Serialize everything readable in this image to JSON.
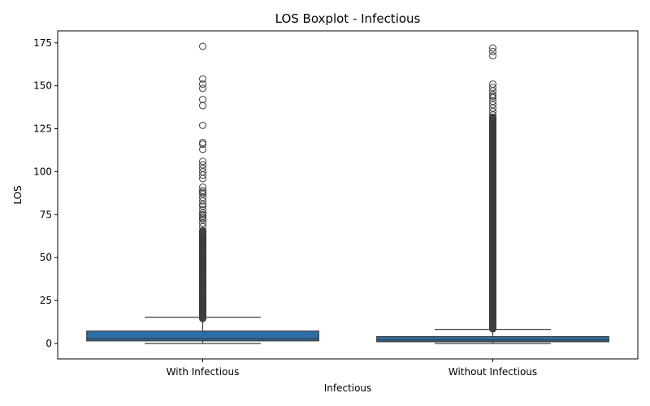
{
  "chart_data": {
    "type": "boxplot",
    "title": "LOS Boxplot - Infectious",
    "xlabel": "Infectious",
    "ylabel": "LOS",
    "ylim": [
      -9,
      182
    ],
    "yticks": [
      0,
      25,
      50,
      75,
      100,
      125,
      150,
      175
    ],
    "categories": [
      "With Infectious",
      "Without Infectious"
    ],
    "series": [
      {
        "category": "With Infectious",
        "color": "#2b6ea7",
        "min": 0,
        "q1": 1.5,
        "median": 2.8,
        "q3": 7.2,
        "whisker_high": 15.3,
        "dense_outlier_range": [
          14.5,
          66
        ],
        "outliers": [
          68,
          70,
          72,
          73,
          74,
          75,
          76,
          78,
          80,
          81,
          83,
          85,
          87,
          88,
          89,
          91,
          96,
          98,
          100,
          102,
          104,
          106,
          113,
          116,
          117,
          127,
          138.5,
          142,
          148.5,
          151,
          154,
          173
        ]
      },
      {
        "category": "Without Infectious",
        "color": "#2b6ea7",
        "min": 0,
        "q1": 1.0,
        "median": 2.0,
        "q3": 4.0,
        "whisker_high": 8.2,
        "dense_outlier_range": [
          8.5,
          132
        ],
        "outliers": [
          133,
          135,
          137,
          139,
          141,
          143,
          144,
          145,
          147,
          149,
          151,
          167.5,
          170,
          172
        ]
      }
    ]
  }
}
